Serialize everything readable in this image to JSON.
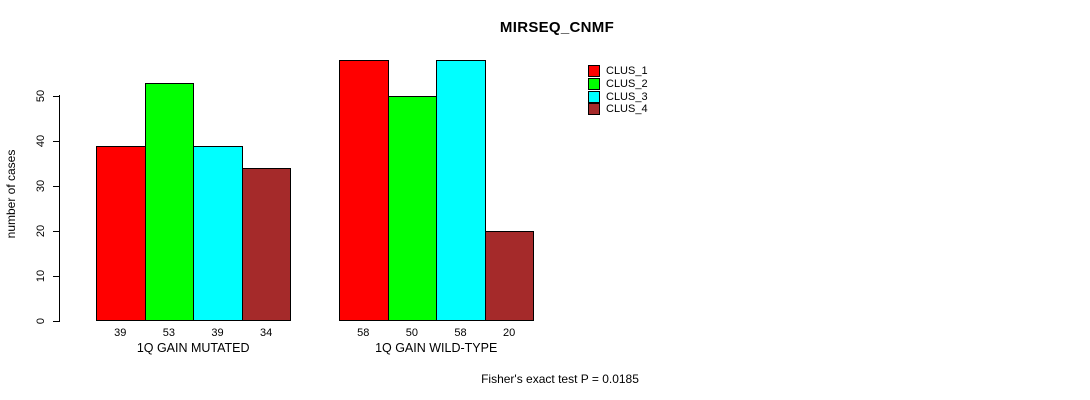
{
  "chart_data": {
    "type": "bar",
    "title": "MIRSEQ_CNMF",
    "ylabel": "number of cases",
    "xlabel": "",
    "ylim": [
      0,
      58
    ],
    "yticks": [
      0,
      10,
      20,
      30,
      40,
      50
    ],
    "grid": false,
    "categories": [
      "1Q GAIN MUTATED",
      "1Q GAIN WILD-TYPE"
    ],
    "series": [
      {
        "name": "CLUS_1",
        "color": "#ff0000",
        "values": [
          39,
          58
        ]
      },
      {
        "name": "CLUS_2",
        "color": "#00ff00",
        "values": [
          53,
          50
        ]
      },
      {
        "name": "CLUS_3",
        "color": "#00ffff",
        "values": [
          39,
          58
        ]
      },
      {
        "name": "CLUS_4",
        "color": "#a52a2a",
        "values": [
          34,
          20
        ]
      }
    ],
    "bar_value_labels": [
      [
        "39",
        "53",
        "39",
        "34"
      ],
      [
        "58",
        "50",
        "58",
        "20"
      ]
    ],
    "legend": {
      "position": "top-right-inside",
      "entries": [
        "CLUS_1",
        "CLUS_2",
        "CLUS_3",
        "CLUS_4"
      ]
    },
    "annotation": "Fisher's exact test P = 0.0185",
    "axis_color": "#000000",
    "background_color": "#ffffff"
  }
}
